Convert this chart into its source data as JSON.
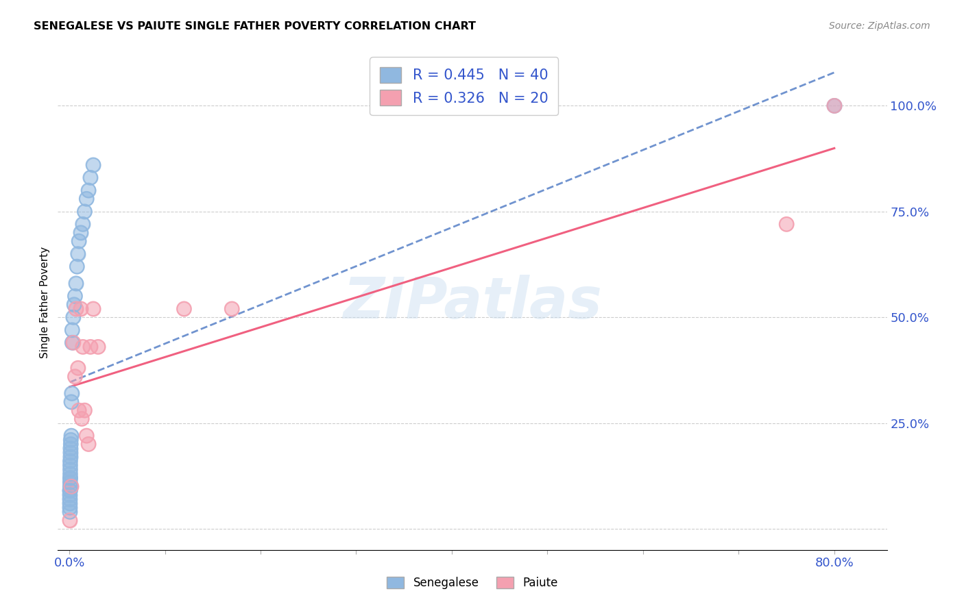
{
  "title": "SENEGALESE VS PAIUTE SINGLE FATHER POVERTY CORRELATION CHART",
  "source": "Source: ZipAtlas.com",
  "ylabel": "Single Father Poverty",
  "watermark": "ZIPatlas",
  "senegalese_color": "#90b8e0",
  "paiute_color": "#f4a0b0",
  "senegalese_line_color": "#3366bb",
  "paiute_line_color": "#f06080",
  "R_senegalese": 0.445,
  "N_senegalese": 40,
  "R_paiute": 0.326,
  "N_paiute": 20,
  "legend_bottom": [
    "Senegalese",
    "Paiute"
  ],
  "senegalese_x": [
    0.0005,
    0.0005,
    0.0005,
    0.0005,
    0.0005,
    0.0005,
    0.0008,
    0.0008,
    0.0008,
    0.001,
    0.001,
    0.001,
    0.001,
    0.001,
    0.001,
    0.0012,
    0.0012,
    0.0012,
    0.0015,
    0.0015,
    0.002,
    0.002,
    0.0025,
    0.003,
    0.003,
    0.004,
    0.005,
    0.006,
    0.007,
    0.008,
    0.009,
    0.01,
    0.012,
    0.014,
    0.016,
    0.018,
    0.02,
    0.022,
    0.025,
    0.8
  ],
  "senegalese_y": [
    0.04,
    0.05,
    0.06,
    0.07,
    0.08,
    0.09,
    0.09,
    0.1,
    0.11,
    0.12,
    0.12,
    0.13,
    0.14,
    0.15,
    0.16,
    0.17,
    0.18,
    0.19,
    0.2,
    0.21,
    0.22,
    0.3,
    0.32,
    0.44,
    0.47,
    0.5,
    0.53,
    0.55,
    0.58,
    0.62,
    0.65,
    0.68,
    0.7,
    0.72,
    0.75,
    0.78,
    0.8,
    0.83,
    0.86,
    1.0
  ],
  "paiute_x": [
    0.0005,
    0.002,
    0.004,
    0.006,
    0.007,
    0.009,
    0.01,
    0.012,
    0.013,
    0.014,
    0.016,
    0.018,
    0.02,
    0.022,
    0.025,
    0.03,
    0.12,
    0.17,
    0.75,
    0.8
  ],
  "paiute_y": [
    0.02,
    0.1,
    0.44,
    0.36,
    0.52,
    0.38,
    0.28,
    0.52,
    0.26,
    0.43,
    0.28,
    0.22,
    0.2,
    0.43,
    0.52,
    0.43,
    0.52,
    0.52,
    0.72,
    1.0
  ],
  "xlim": [
    -0.012,
    0.855
  ],
  "ylim": [
    -0.05,
    1.12
  ],
  "background_color": "#ffffff"
}
